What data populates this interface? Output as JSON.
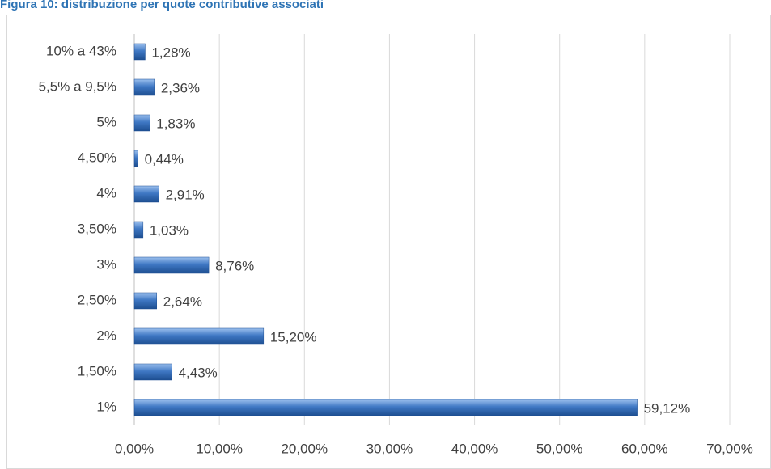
{
  "chart_data": {
    "type": "bar",
    "orientation": "horizontal",
    "title": "Figura 10: distribuzione per quote contributive associati",
    "categories": [
      "1%",
      "1,50%",
      "2%",
      "2,50%",
      "3%",
      "3,50%",
      "4%",
      "4,50%",
      "5%",
      "5,5% a 9,5%",
      "10% a 43%"
    ],
    "values": [
      59.12,
      4.43,
      15.2,
      2.64,
      8.76,
      1.03,
      2.91,
      0.44,
      1.83,
      2.36,
      1.28
    ],
    "value_labels": [
      "59,12%",
      "4,43%",
      "15,20%",
      "2,64%",
      "8,76%",
      "1,03%",
      "2,91%",
      "0,44%",
      "1,83%",
      "2,36%",
      "1,28%"
    ],
    "color": "#3b6fb6",
    "xlim": [
      0,
      70
    ],
    "xticks": [
      {
        "value": 0,
        "label": "0,00%"
      },
      {
        "value": 10,
        "label": "10,00%"
      },
      {
        "value": 20,
        "label": "20,00%"
      },
      {
        "value": 30,
        "label": "30,00%"
      },
      {
        "value": 40,
        "label": "40,00%"
      },
      {
        "value": 50,
        "label": "50,00%"
      },
      {
        "value": 60,
        "label": "60,00%"
      },
      {
        "value": 70,
        "label": "70,00%"
      }
    ],
    "grid": true
  }
}
